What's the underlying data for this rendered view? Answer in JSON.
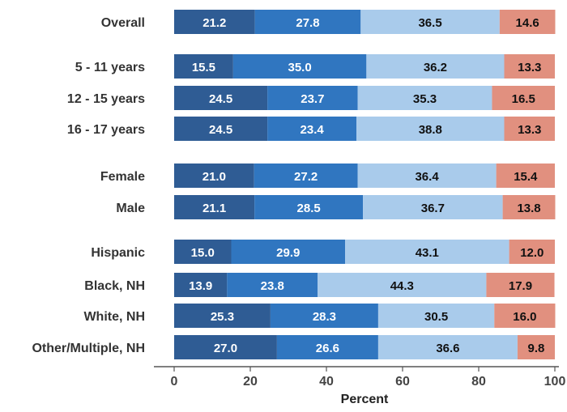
{
  "chart_data": {
    "type": "bar",
    "orientation": "horizontal",
    "stacked": true,
    "xlabel": "Percent",
    "xlim": [
      0,
      100
    ],
    "xticks": [
      "0",
      "20",
      "40",
      "60",
      "80",
      "100"
    ],
    "grid": false,
    "legend": "none",
    "categories": [
      "Overall",
      "5 - 11 years",
      "12 - 15 years",
      "16 - 17 years",
      "Female",
      "Male",
      "Hispanic",
      "Black, NH",
      "White, NH",
      "Other/Multiple, NH"
    ],
    "groups": [
      [
        0
      ],
      [
        1,
        2,
        3
      ],
      [
        4,
        5
      ],
      [
        6,
        7,
        8,
        9
      ]
    ],
    "series": [
      {
        "color": "#2f5c94",
        "label_color": "#ffffff",
        "values": [
          21.2,
          15.5,
          24.5,
          24.5,
          21.0,
          21.1,
          15.0,
          13.9,
          25.3,
          27.0
        ],
        "labels": [
          "21.2",
          "15.5",
          "24.5",
          "24.5",
          "21.0",
          "21.1",
          "15.0",
          "13.9",
          "25.3",
          "27.0"
        ]
      },
      {
        "color": "#3076c0",
        "label_color": "#ffffff",
        "values": [
          27.8,
          35.0,
          23.7,
          23.4,
          27.2,
          28.5,
          29.9,
          23.8,
          28.3,
          26.6
        ],
        "labels": [
          "27.8",
          "35.0",
          "23.7",
          "23.4",
          "27.2",
          "28.5",
          "29.9",
          "23.8",
          "28.3",
          "26.6"
        ]
      },
      {
        "color": "#a9cbeb",
        "label_color": "#111111",
        "values": [
          36.5,
          36.2,
          35.3,
          38.8,
          36.4,
          36.7,
          43.1,
          44.3,
          30.5,
          36.6
        ],
        "labels": [
          "36.5",
          "36.2",
          "35.3",
          "38.8",
          "36.4",
          "36.7",
          "43.1",
          "44.3",
          "30.5",
          "36.6"
        ]
      },
      {
        "color": "#e1907f",
        "label_color": "#111111",
        "values": [
          14.6,
          13.3,
          16.5,
          13.3,
          15.4,
          13.8,
          12.0,
          17.9,
          16.0,
          9.8
        ],
        "labels": [
          "14.6",
          "13.3",
          "16.5",
          "13.3",
          "15.4",
          "13.8",
          "12.0",
          "17.9",
          "16.0",
          "9.8"
        ]
      }
    ]
  }
}
